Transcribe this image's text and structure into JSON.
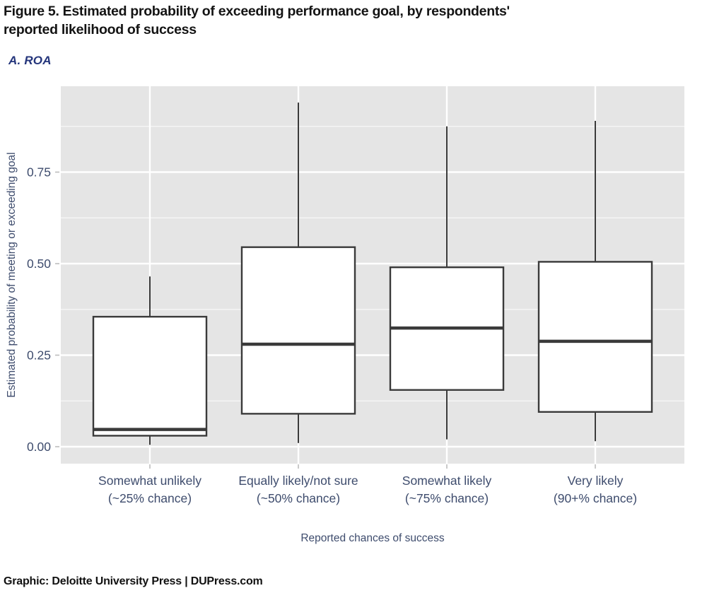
{
  "header": {
    "title_lines": [
      "Figure 5. Estimated probability of exceeding performance goal, by respondents'",
      "reported likelihood of success"
    ],
    "panel_label": "A. ROA"
  },
  "footer": {
    "credit": "Graphic: Deloitte University Press | DUPress.com"
  },
  "colors": {
    "panel_background": "#e5e5e5",
    "gridline": "#ffffff",
    "box_border": "#3a3a3a",
    "box_fill": "#ffffff",
    "axis_text": "#3e4c6d",
    "navy_accent": "#24357b",
    "title_text": "#141414",
    "tick_mark": "#bdbdbd"
  },
  "chart_data": {
    "type": "boxplot",
    "title": "Figure 5. Estimated probability of exceeding performance goal, by respondents' reported likelihood of success",
    "panel_label": "A. ROA",
    "xlabel": "Reported chances of success",
    "ylabel": "Estimated probability of meeting or exceeding goal",
    "ylim": [
      -0.046,
      0.985
    ],
    "yticks": [
      0,
      0.25,
      0.5,
      0.75
    ],
    "ytick_labels": [
      "0.00",
      "0.25",
      "0.50",
      "0.75"
    ],
    "yticks_minor": [
      0.125,
      0.375,
      0.625,
      0.875
    ],
    "grid": "white major and minor horizontal gridlines on gray panel; vertical white gridline at each category",
    "legend_position": "none",
    "boxes": [
      {
        "label_line1": "Somewhat unlikely",
        "label_line2": "(~25% chance)",
        "whisker_low": 0.005,
        "q1": 0.03,
        "median": 0.047,
        "q3": 0.355,
        "whisker_high": 0.465
      },
      {
        "label_line1": "Equally likely/not sure",
        "label_line2": "(~50% chance)",
        "whisker_low": 0.01,
        "q1": 0.09,
        "median": 0.28,
        "q3": 0.545,
        "whisker_high": 0.94
      },
      {
        "label_line1": "Somewhat likely",
        "label_line2": "(~75% chance)",
        "whisker_low": 0.02,
        "q1": 0.155,
        "median": 0.324,
        "q3": 0.49,
        "whisker_high": 0.875
      },
      {
        "label_line1": "Very likely",
        "label_line2": "(90+% chance)",
        "whisker_low": 0.015,
        "q1": 0.095,
        "median": 0.288,
        "q3": 0.505,
        "whisker_high": 0.89
      }
    ]
  }
}
